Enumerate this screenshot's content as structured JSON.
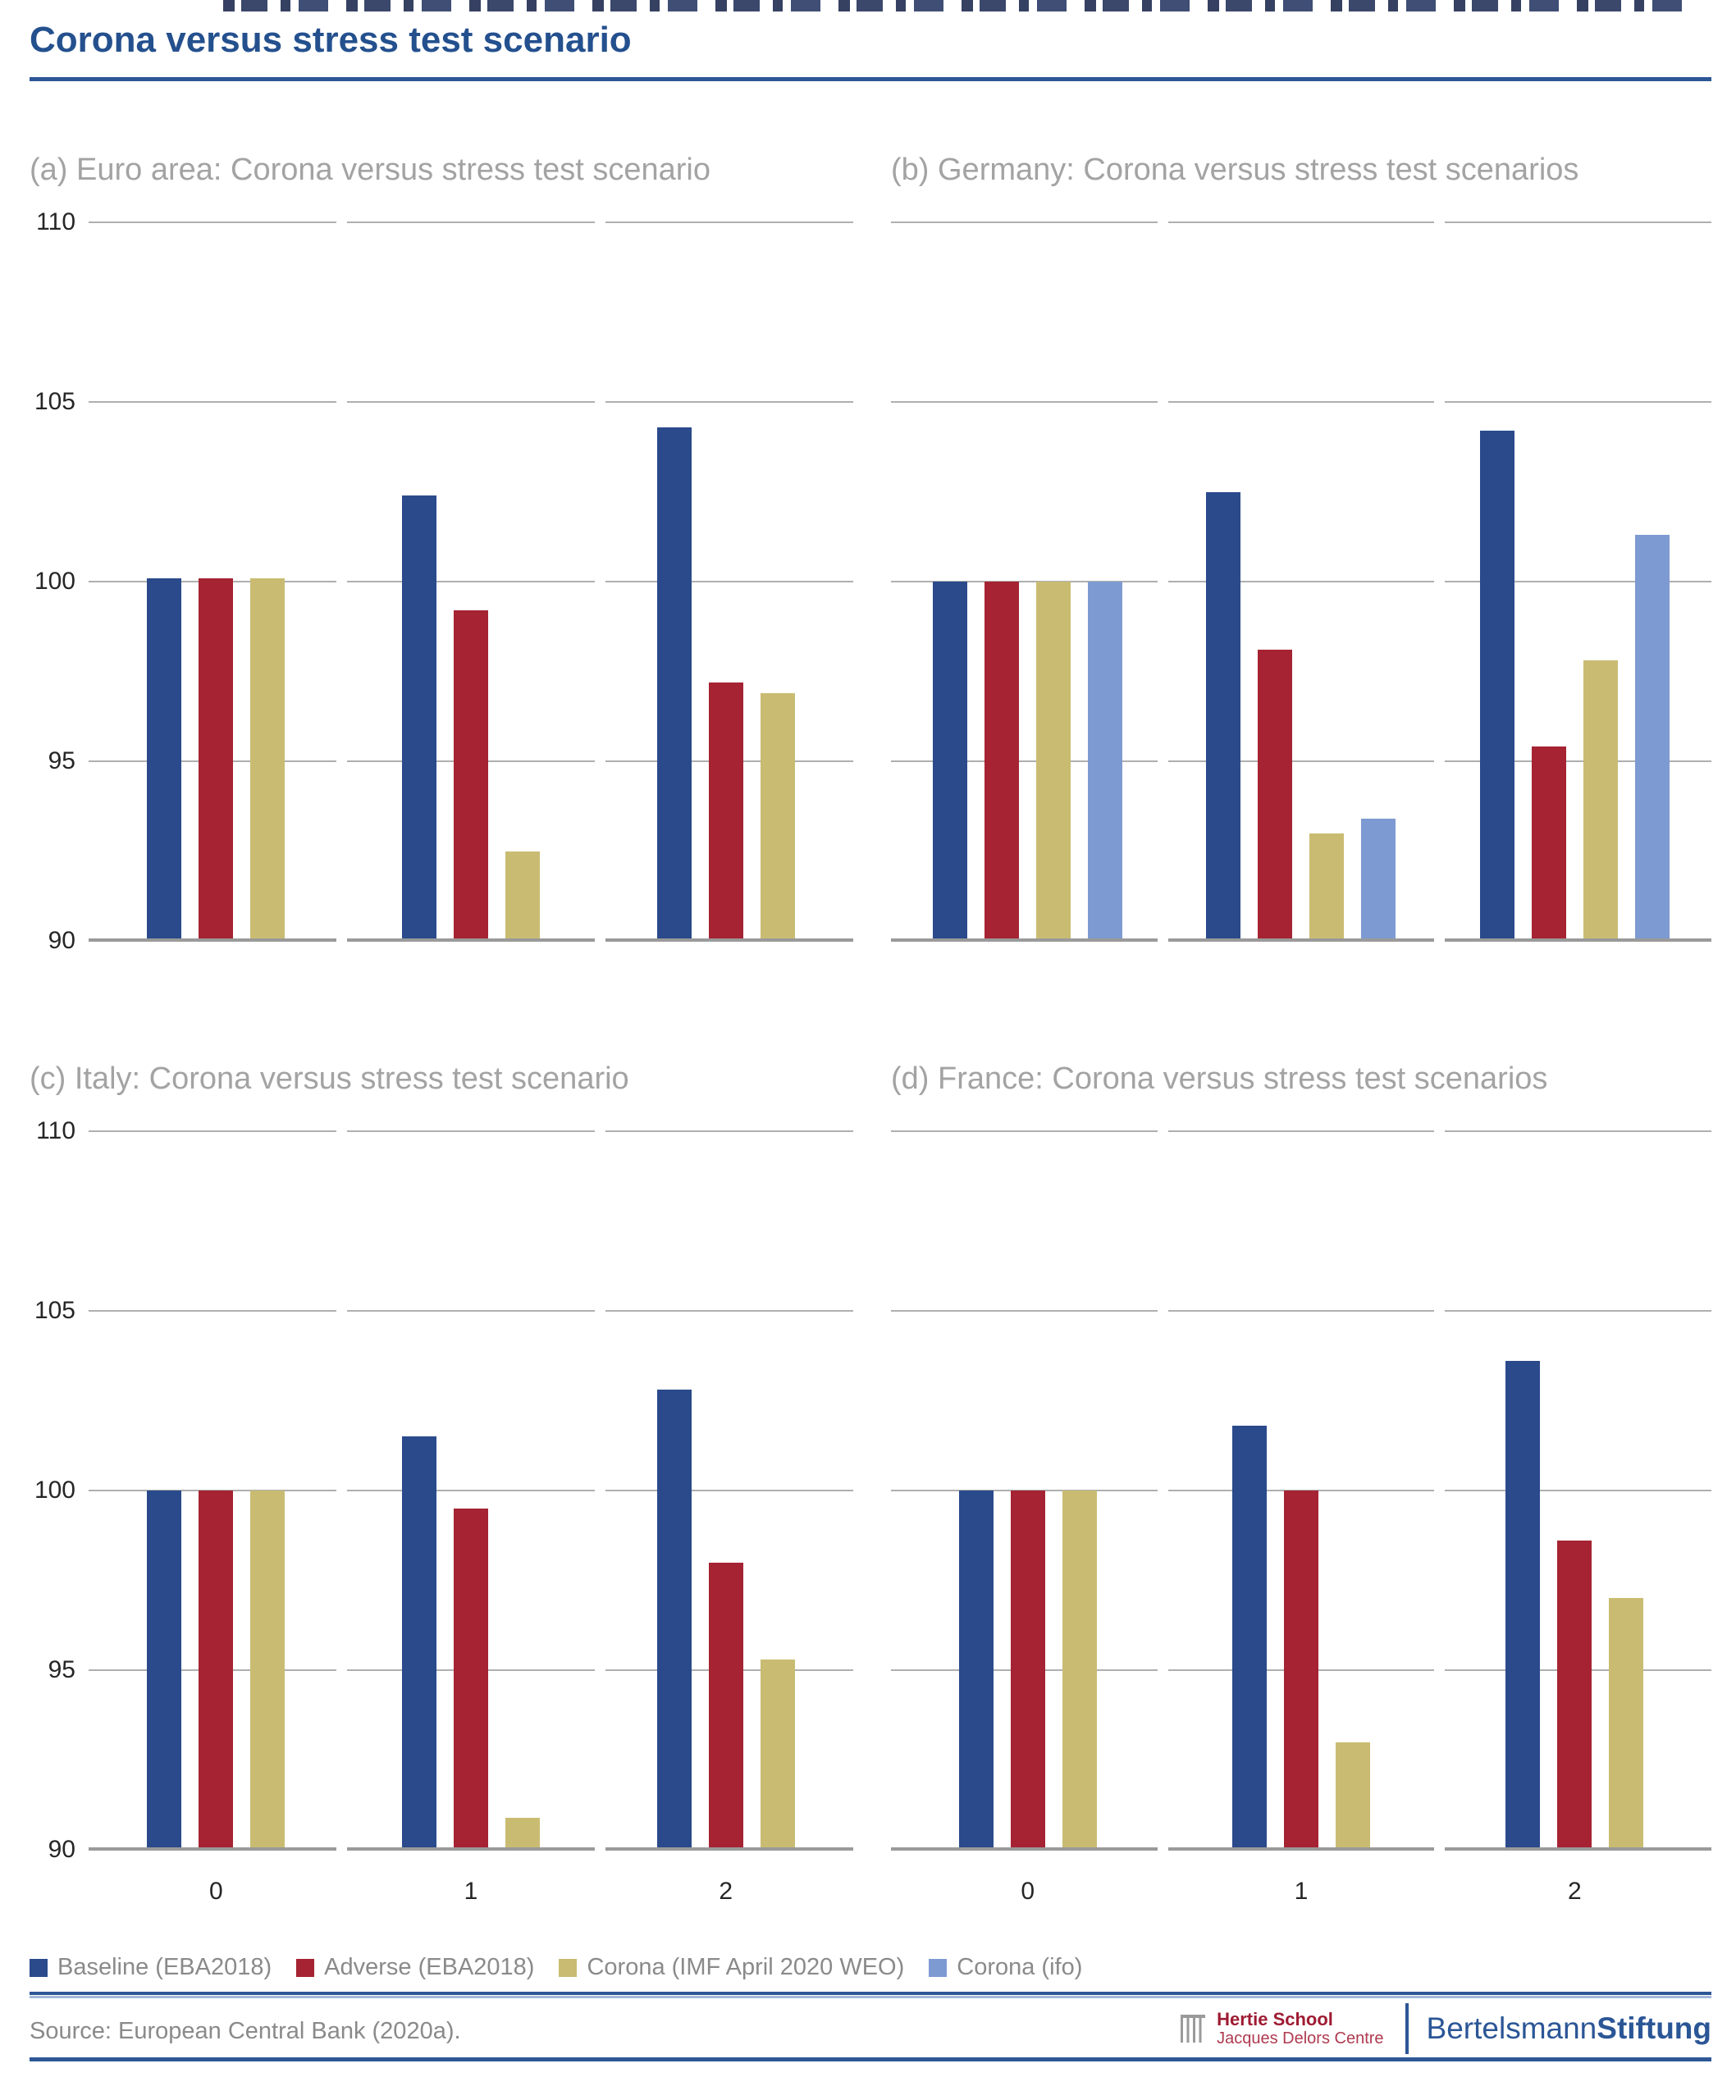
{
  "page": {
    "title": "Corona versus stress test scenario",
    "source_text": "Source: European Central Bank (2020a)."
  },
  "colors": {
    "baseline_navy": "#2A4A8B",
    "adverse_red": "#A52332",
    "corona_imf_tan": "#C9BC72",
    "corona_ifo_blue": "#7E9AD2",
    "rule_navy": "#2E5796",
    "title_navy": "#24508E",
    "subtitle_grey": "#A3A3A3",
    "tick_label": "#262626",
    "muted_grey": "#8A8A8A",
    "gridline_grey": "#AFAFAF",
    "axisline_grey": "#9A9A9A",
    "hertie_red": "#9E1B32",
    "bertelsmann_navy": "#2B5696"
  },
  "legend": {
    "items": [
      {
        "label": "Baseline (EBA2018)",
        "color": "#2A4A8B"
      },
      {
        "label": "Adverse (EBA2018)",
        "color": "#A52332"
      },
      {
        "label": "Corona (IMF April 2020 WEO)",
        "color": "#C9BC72"
      },
      {
        "label": "Corona (ifo)",
        "color": "#7E9AD2"
      }
    ]
  },
  "chart_data": [
    {
      "type": "bar",
      "panel": "a",
      "title": "(a) Euro area: Corona versus stress test scenario",
      "categories": [
        "0",
        "1",
        "2"
      ],
      "series": [
        {
          "name": "Baseline (EBA2018)",
          "color": "#2A4A8B",
          "values": [
            100.1,
            102.4,
            104.3
          ]
        },
        {
          "name": "Adverse (EBA2018)",
          "color": "#A52332",
          "values": [
            100.1,
            99.2,
            97.2
          ]
        },
        {
          "name": "Corona (IMF April 2020 WEO)",
          "color": "#C9BC72",
          "values": [
            100.1,
            92.5,
            96.9
          ]
        }
      ],
      "ylim": [
        90,
        110
      ],
      "yticks": [
        110,
        105,
        100,
        95,
        90
      ],
      "grid": true,
      "show_y_labels": true,
      "show_x_labels": false
    },
    {
      "type": "bar",
      "panel": "b",
      "title": "(b) Germany: Corona versus stress test scenarios",
      "categories": [
        "0",
        "1",
        "2"
      ],
      "series": [
        {
          "name": "Baseline (EBA2018)",
          "color": "#2A4A8B",
          "values": [
            100.0,
            102.5,
            104.2
          ]
        },
        {
          "name": "Adverse (EBA2018)",
          "color": "#A52332",
          "values": [
            100.0,
            98.1,
            95.4
          ]
        },
        {
          "name": "Corona (IMF April 2020 WEO)",
          "color": "#C9BC72",
          "values": [
            100.0,
            93.0,
            97.8
          ]
        },
        {
          "name": "Corona (ifo)",
          "color": "#7E9AD2",
          "values": [
            100.0,
            93.4,
            101.3
          ]
        }
      ],
      "ylim": [
        90,
        110
      ],
      "yticks": [
        110,
        105,
        100,
        95,
        90
      ],
      "grid": true,
      "show_y_labels": false,
      "show_x_labels": false
    },
    {
      "type": "bar",
      "panel": "c",
      "title": "(c) Italy: Corona versus stress test scenario",
      "categories": [
        "0",
        "1",
        "2"
      ],
      "series": [
        {
          "name": "Baseline (EBA2018)",
          "color": "#2A4A8B",
          "values": [
            100.0,
            101.5,
            102.8
          ]
        },
        {
          "name": "Adverse (EBA2018)",
          "color": "#A52332",
          "values": [
            100.0,
            99.5,
            98.0
          ]
        },
        {
          "name": "Corona (IMF April 2020 WEO)",
          "color": "#C9BC72",
          "values": [
            100.0,
            90.9,
            95.3
          ]
        }
      ],
      "ylim": [
        90,
        110
      ],
      "yticks": [
        110,
        105,
        100,
        95,
        90
      ],
      "grid": true,
      "show_y_labels": true,
      "show_x_labels": true
    },
    {
      "type": "bar",
      "panel": "d",
      "title": "(d) France: Corona versus stress test scenarios",
      "categories": [
        "0",
        "1",
        "2"
      ],
      "series": [
        {
          "name": "Baseline (EBA2018)",
          "color": "#2A4A8B",
          "values": [
            100.0,
            101.8,
            103.6
          ]
        },
        {
          "name": "Adverse (EBA2018)",
          "color": "#A52332",
          "values": [
            100.0,
            100.0,
            98.6
          ]
        },
        {
          "name": "Corona (IMF April 2020 WEO)",
          "color": "#C9BC72",
          "values": [
            100.0,
            93.0,
            97.0
          ]
        }
      ],
      "ylim": [
        90,
        110
      ],
      "yticks": [
        110,
        105,
        100,
        95,
        90
      ],
      "grid": true,
      "show_y_labels": false,
      "show_x_labels": true
    }
  ],
  "footer": {
    "hertie_line1": "Hertie School",
    "hertie_line2": "Jacques Delors Centre",
    "bertelsmann_part1": "Bertelsmann",
    "bertelsmann_part2": "Stiftung"
  }
}
